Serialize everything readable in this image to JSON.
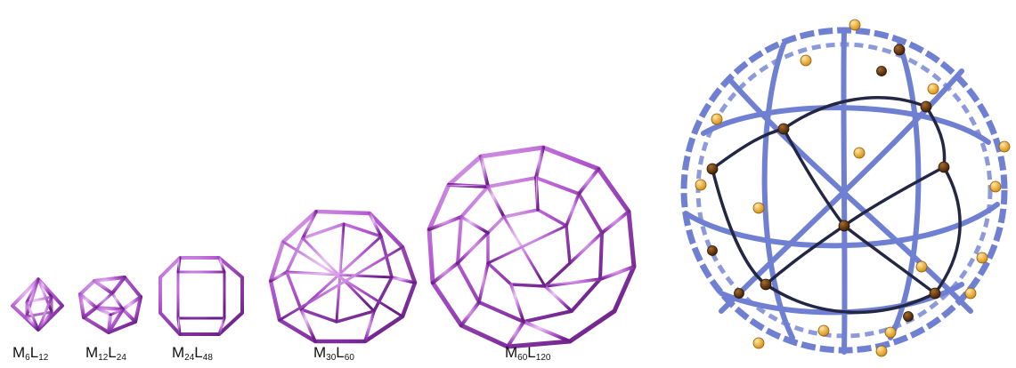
{
  "colors": {
    "cage_dark": "#6a1f86",
    "cage_mid": "#a13dc4",
    "cage_light": "#d9a6e6",
    "ligand_blue": "#6f7fd1",
    "ligand_dark": "#232744",
    "metal_gold": "#f1b43a",
    "metal_brown": "#6b3d12"
  },
  "cages": [
    {
      "metal": "M",
      "metal_count": "6",
      "ligand": "L",
      "ligand_count": "12"
    },
    {
      "metal": "M",
      "metal_count": "12",
      "ligand": "L",
      "ligand_count": "24"
    },
    {
      "metal": "M",
      "metal_count": "24",
      "ligand": "L",
      "ligand_count": "48"
    },
    {
      "metal": "M",
      "metal_count": "30",
      "ligand": "L",
      "ligand_count": "60"
    },
    {
      "metal": "M",
      "metal_count": "60",
      "ligand": "L",
      "ligand_count": "120"
    }
  ]
}
